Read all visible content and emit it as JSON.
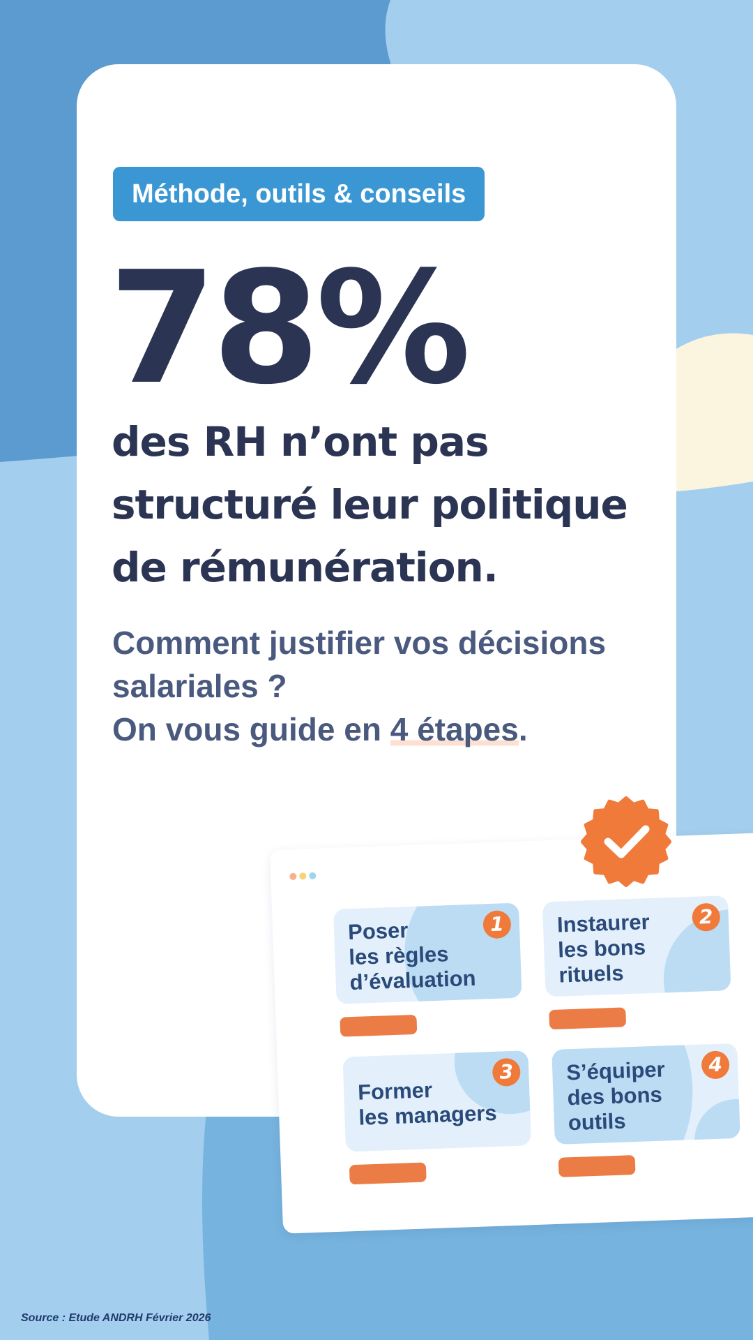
{
  "tag": "Méthode, outils & conseils",
  "stat": "78%",
  "headline": [
    "des RH n’ont pas",
    "structuré leur politique",
    "de rémunération."
  ],
  "question": [
    "Comment justifier vos décisions",
    "salariales ?"
  ],
  "guide": {
    "prefix": "On vous guide en",
    "highlight": "4 étapes",
    "suffix": "."
  },
  "steps": [
    {
      "number": 1,
      "lines": [
        "Poser",
        "les règles",
        "d’évaluation"
      ]
    },
    {
      "number": 2,
      "lines": [
        "Instaurer",
        "les bons",
        "rituels"
      ]
    },
    {
      "number": 3,
      "lines": [
        "Former",
        "les managers"
      ]
    },
    {
      "number": 4,
      "lines": [
        "S’équiper",
        "des bons",
        "outils"
      ]
    }
  ],
  "source": "Source : Etude ANDRH Février 2026"
}
